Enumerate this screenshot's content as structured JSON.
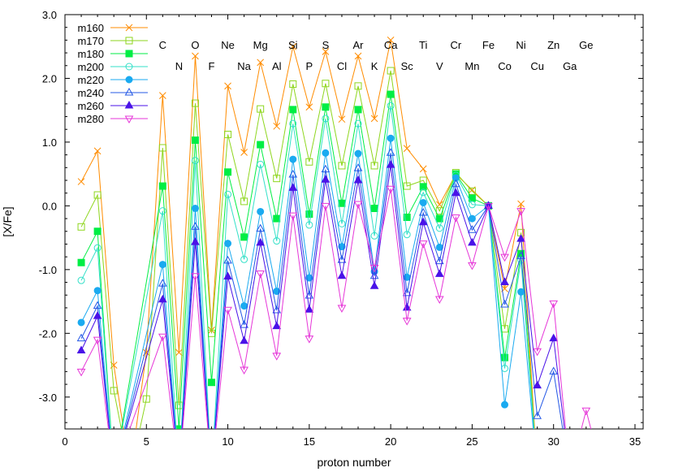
{
  "chart_data": {
    "type": "line",
    "xlabel": "proton number",
    "ylabel": "[X/Fe]",
    "xlim": [
      0,
      35.5
    ],
    "ylim": [
      -3.5,
      3.0
    ],
    "xticks": [
      0,
      5,
      10,
      15,
      20,
      25,
      30,
      35
    ],
    "yticks": [
      -3.0,
      -2.0,
      -1.0,
      0.0,
      1.0,
      2.0,
      3.0
    ],
    "grid": false,
    "legend_position": "top-left",
    "x_tick_labels": [
      "0",
      "5",
      "10",
      "15",
      "20",
      "25",
      "30",
      "35"
    ],
    "y_tick_labels": [
      "-3.0",
      "-2.0",
      "-1.0",
      "0.0",
      "1.0",
      "2.0",
      "3.0"
    ],
    "element_labels_top": [
      {
        "Z": 6,
        "text": "C"
      },
      {
        "Z": 8,
        "text": "O"
      },
      {
        "Z": 10,
        "text": "Ne"
      },
      {
        "Z": 12,
        "text": "Mg"
      },
      {
        "Z": 14,
        "text": "Si"
      },
      {
        "Z": 16,
        "text": "S"
      },
      {
        "Z": 18,
        "text": "Ar"
      },
      {
        "Z": 20,
        "text": "Ca"
      },
      {
        "Z": 22,
        "text": "Ti"
      },
      {
        "Z": 24,
        "text": "Cr"
      },
      {
        "Z": 26,
        "text": "Fe"
      },
      {
        "Z": 28,
        "text": "Ni"
      },
      {
        "Z": 30,
        "text": "Zn"
      },
      {
        "Z": 32,
        "text": "Ge"
      }
    ],
    "element_labels_bottom": [
      {
        "Z": 7,
        "text": "N"
      },
      {
        "Z": 9,
        "text": "F"
      },
      {
        "Z": 11,
        "text": "Na"
      },
      {
        "Z": 13,
        "text": "Al"
      },
      {
        "Z": 15,
        "text": "P"
      },
      {
        "Z": 17,
        "text": "Cl"
      },
      {
        "Z": 19,
        "text": "K"
      },
      {
        "Z": 21,
        "text": "Sc"
      },
      {
        "Z": 23,
        "text": "V"
      },
      {
        "Z": 25,
        "text": "Mn"
      },
      {
        "Z": 27,
        "text": "Co"
      },
      {
        "Z": 29,
        "text": "Cu"
      },
      {
        "Z": 31,
        "text": "Ga"
      }
    ],
    "series": [
      {
        "name": "m160",
        "color": "#ff8c00",
        "marker": "x",
        "points": [
          [
            1,
            0.38
          ],
          [
            2,
            0.86
          ],
          [
            3,
            -2.5
          ],
          [
            4,
            -4.2
          ],
          [
            5,
            -2.3
          ],
          [
            6,
            1.73
          ],
          [
            7,
            -2.3
          ],
          [
            8,
            2.35
          ],
          [
            9,
            -1.95
          ],
          [
            10,
            1.88
          ],
          [
            11,
            0.84
          ],
          [
            12,
            2.25
          ],
          [
            13,
            1.25
          ],
          [
            14,
            2.5
          ],
          [
            15,
            1.55
          ],
          [
            16,
            2.42
          ],
          [
            17,
            1.36
          ],
          [
            18,
            2.35
          ],
          [
            19,
            1.37
          ],
          [
            20,
            2.6
          ],
          [
            21,
            0.9
          ],
          [
            22,
            0.58
          ],
          [
            23,
            0.02
          ],
          [
            24,
            0.5
          ],
          [
            25,
            0.25
          ],
          [
            26,
            0.0
          ],
          [
            27,
            -1.3
          ],
          [
            28,
            0.03
          ],
          [
            29,
            -4.2
          ]
        ]
      },
      {
        "name": "m170",
        "color": "#8ed61e",
        "marker": "square-open",
        "points": [
          [
            1,
            -0.33
          ],
          [
            2,
            0.17
          ],
          [
            3,
            -2.9
          ],
          [
            4,
            -4.2
          ],
          [
            5,
            -3.03
          ],
          [
            6,
            0.91
          ],
          [
            7,
            -3.13
          ],
          [
            8,
            1.61
          ],
          [
            9,
            -2.0
          ],
          [
            10,
            1.12
          ],
          [
            11,
            0.07
          ],
          [
            12,
            1.52
          ],
          [
            13,
            0.43
          ],
          [
            14,
            1.91
          ],
          [
            15,
            0.69
          ],
          [
            16,
            1.92
          ],
          [
            17,
            0.63
          ],
          [
            18,
            1.88
          ],
          [
            19,
            0.63
          ],
          [
            20,
            2.12
          ],
          [
            21,
            0.31
          ],
          [
            22,
            0.4
          ],
          [
            23,
            -0.08
          ],
          [
            24,
            0.52
          ],
          [
            25,
            0.23
          ],
          [
            26,
            0.0
          ],
          [
            27,
            -1.93
          ],
          [
            28,
            -0.42
          ],
          [
            29,
            -4.2
          ]
        ]
      },
      {
        "name": "m180",
        "color": "#00ee44",
        "marker": "square-filled",
        "points": [
          [
            1,
            -0.89
          ],
          [
            2,
            -0.4
          ],
          [
            3,
            -4.2
          ],
          [
            6,
            0.31
          ],
          [
            7,
            -3.5
          ],
          [
            8,
            1.03
          ],
          [
            9,
            -2.77
          ],
          [
            10,
            0.53
          ],
          [
            11,
            -0.49
          ],
          [
            12,
            0.96
          ],
          [
            13,
            -0.2
          ],
          [
            14,
            1.51
          ],
          [
            15,
            -0.13
          ],
          [
            16,
            1.55
          ],
          [
            17,
            0.04
          ],
          [
            18,
            1.51
          ],
          [
            19,
            -0.04
          ],
          [
            20,
            1.75
          ],
          [
            21,
            -0.18
          ],
          [
            22,
            0.3
          ],
          [
            23,
            -0.2
          ],
          [
            24,
            0.5
          ],
          [
            25,
            0.12
          ],
          [
            26,
            0.0
          ],
          [
            27,
            -2.38
          ],
          [
            28,
            -0.75
          ],
          [
            29,
            -4.2
          ]
        ]
      },
      {
        "name": "m200",
        "color": "#33e0c8",
        "marker": "circle-open",
        "points": [
          [
            1,
            -1.17
          ],
          [
            2,
            -0.66
          ],
          [
            3,
            -4.2
          ],
          [
            6,
            -0.08
          ],
          [
            7,
            -4.2
          ],
          [
            8,
            0.71
          ],
          [
            9,
            -4.2
          ],
          [
            10,
            0.18
          ],
          [
            11,
            -0.84
          ],
          [
            12,
            0.65
          ],
          [
            13,
            -0.55
          ],
          [
            14,
            1.29
          ],
          [
            15,
            -0.3
          ],
          [
            16,
            1.37
          ],
          [
            17,
            -0.28
          ],
          [
            18,
            1.29
          ],
          [
            19,
            -0.47
          ],
          [
            20,
            1.57
          ],
          [
            21,
            -0.45
          ],
          [
            22,
            0.21
          ],
          [
            23,
            -0.35
          ],
          [
            24,
            0.48
          ],
          [
            25,
            0.02
          ],
          [
            26,
            0.0
          ],
          [
            27,
            -2.55
          ],
          [
            28,
            -0.85
          ],
          [
            29,
            -4.2
          ]
        ]
      },
      {
        "name": "m220",
        "color": "#1aaaf0",
        "marker": "circle-filled",
        "points": [
          [
            1,
            -1.83
          ],
          [
            2,
            -1.33
          ],
          [
            3,
            -4.2
          ],
          [
            6,
            -0.92
          ],
          [
            7,
            -4.2
          ],
          [
            8,
            -0.04
          ],
          [
            9,
            -4.2
          ],
          [
            10,
            -0.59
          ],
          [
            11,
            -1.57
          ],
          [
            12,
            -0.09
          ],
          [
            13,
            -1.34
          ],
          [
            14,
            0.73
          ],
          [
            15,
            -1.13
          ],
          [
            16,
            0.83
          ],
          [
            17,
            -0.64
          ],
          [
            18,
            0.82
          ],
          [
            19,
            -1.03
          ],
          [
            20,
            1.06
          ],
          [
            21,
            -1.12
          ],
          [
            22,
            0.05
          ],
          [
            23,
            -0.65
          ],
          [
            24,
            0.44
          ],
          [
            25,
            -0.2
          ],
          [
            26,
            0.0
          ],
          [
            27,
            -3.12
          ],
          [
            28,
            -1.35
          ],
          [
            29,
            -4.2
          ]
        ]
      },
      {
        "name": "m240",
        "color": "#2458e6",
        "marker": "triangle-open",
        "points": [
          [
            1,
            -2.08
          ],
          [
            2,
            -1.57
          ],
          [
            3,
            -4.2
          ],
          [
            6,
            -1.22
          ],
          [
            7,
            -4.2
          ],
          [
            8,
            -0.33
          ],
          [
            9,
            -4.2
          ],
          [
            10,
            -0.86
          ],
          [
            11,
            -1.87
          ],
          [
            12,
            -0.36
          ],
          [
            13,
            -1.64
          ],
          [
            14,
            0.49
          ],
          [
            15,
            -1.41
          ],
          [
            16,
            0.57
          ],
          [
            17,
            -0.85
          ],
          [
            18,
            0.59
          ],
          [
            19,
            -1.1
          ],
          [
            20,
            0.83
          ],
          [
            21,
            -1.37
          ],
          [
            22,
            -0.11
          ],
          [
            23,
            -0.87
          ],
          [
            24,
            0.34
          ],
          [
            25,
            -0.38
          ],
          [
            26,
            0.0
          ],
          [
            27,
            -1.55
          ],
          [
            28,
            -0.79
          ],
          [
            29,
            -3.3
          ],
          [
            30,
            -2.6
          ],
          [
            31,
            -4.2
          ]
        ]
      },
      {
        "name": "m260",
        "color": "#4a12e8",
        "marker": "triangle-filled",
        "points": [
          [
            1,
            -2.27
          ],
          [
            2,
            -1.73
          ],
          [
            3,
            -4.2
          ],
          [
            6,
            -1.47
          ],
          [
            7,
            -4.2
          ],
          [
            8,
            -0.57
          ],
          [
            9,
            -4.2
          ],
          [
            10,
            -1.11
          ],
          [
            11,
            -2.12
          ],
          [
            12,
            -0.58
          ],
          [
            13,
            -1.89
          ],
          [
            14,
            0.28
          ],
          [
            15,
            -1.63
          ],
          [
            16,
            0.41
          ],
          [
            17,
            -1.1
          ],
          [
            18,
            0.4
          ],
          [
            19,
            -1.26
          ],
          [
            20,
            0.64
          ],
          [
            21,
            -1.6
          ],
          [
            22,
            -0.26
          ],
          [
            23,
            -1.07
          ],
          [
            24,
            0.2
          ],
          [
            25,
            -0.58
          ],
          [
            26,
            0.0
          ],
          [
            27,
            -1.2
          ],
          [
            28,
            -0.52
          ],
          [
            29,
            -2.82
          ],
          [
            30,
            -2.08
          ],
          [
            31,
            -4.2
          ]
        ]
      },
      {
        "name": "m280",
        "color": "#e636d8",
        "marker": "triangle-down-open",
        "points": [
          [
            1,
            -2.6
          ],
          [
            2,
            -2.1
          ],
          [
            3,
            -4.2
          ],
          [
            6,
            -2.05
          ],
          [
            7,
            -4.2
          ],
          [
            8,
            -1.1
          ],
          [
            9,
            -4.2
          ],
          [
            10,
            -1.63
          ],
          [
            11,
            -2.57
          ],
          [
            12,
            -1.06
          ],
          [
            13,
            -2.35
          ],
          [
            14,
            -0.15
          ],
          [
            15,
            -2.08
          ],
          [
            16,
            0.0
          ],
          [
            17,
            -1.6
          ],
          [
            18,
            0.03
          ],
          [
            19,
            -0.97
          ],
          [
            20,
            0.27
          ],
          [
            21,
            -1.8
          ],
          [
            22,
            -0.59
          ],
          [
            23,
            -1.46
          ],
          [
            24,
            -0.18
          ],
          [
            25,
            -0.93
          ],
          [
            26,
            0.0
          ],
          [
            27,
            -0.8
          ],
          [
            28,
            -0.08
          ],
          [
            29,
            -2.28
          ],
          [
            30,
            -1.53
          ],
          [
            31,
            -4.2
          ],
          [
            32,
            -3.21
          ],
          [
            33,
            -4.2
          ]
        ]
      }
    ]
  }
}
